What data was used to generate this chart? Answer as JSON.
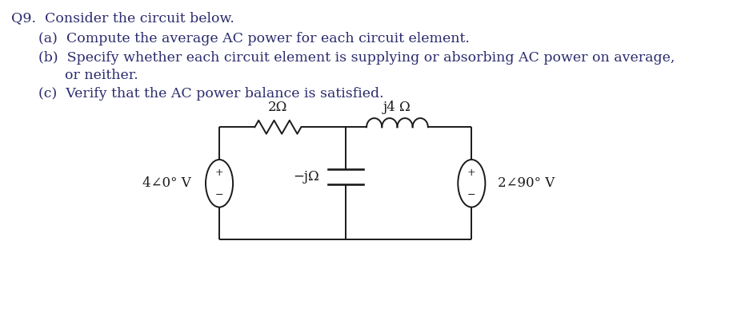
{
  "title_line1": "Q9.  Consider the circuit below.",
  "title_line2": "(a)  Compute the average AC power for each circuit element.",
  "title_line3": "(b)  Specify whether each circuit element is supplying or absorbing AC power on average,",
  "title_line4": "      or neither.",
  "title_line5": "(c)  Verify that the AC power balance is satisfied.",
  "bg_color": "#ffffff",
  "text_color": "#2b2b6e",
  "circuit_color": "#1a1a1a",
  "font_size": 12.5,
  "circuit_font_size": 12,
  "vs1_label": "4∠0° V",
  "vs2_label": "2∠90° V",
  "r_label": "2Ω",
  "c_label": "−jΩ",
  "l_label": "j4 Ω"
}
